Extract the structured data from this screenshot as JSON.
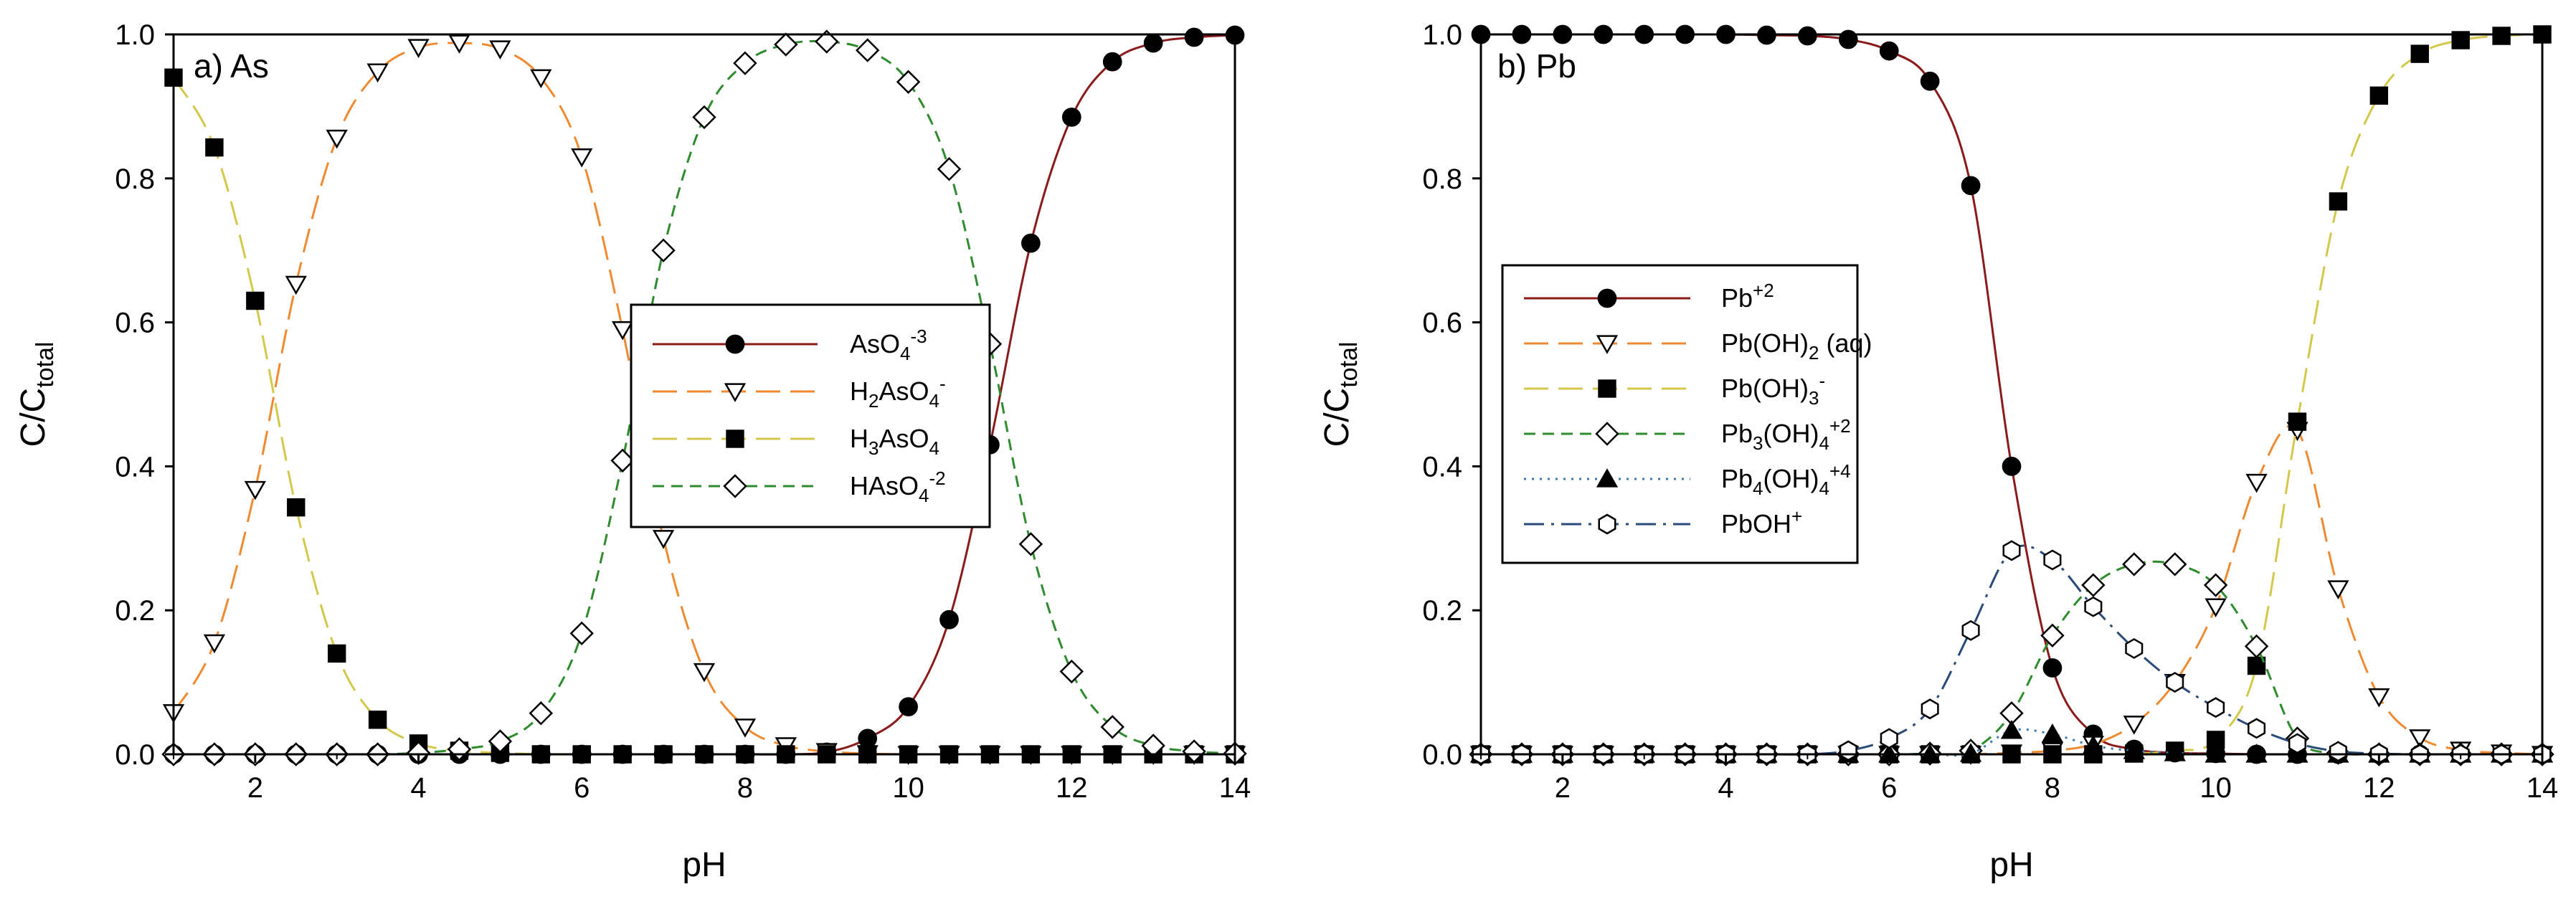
{
  "colors": {
    "asO4": "#8b1a1a",
    "h2asO4": "#f08a30",
    "h3asO4": "#d4c84a",
    "hasO4": "#2e8b2e",
    "pb2": "#8b1a1a",
    "pboh2": "#f08a30",
    "pboh3": "#d4c84a",
    "pb3oh4": "#2e8b2e",
    "pb4oh4": "#3a7ab0",
    "pboh": "#2a4a78"
  },
  "chart_data": [
    {
      "type": "line",
      "title": "a) As",
      "xlabel": "pH",
      "ylabel_main": "C/C",
      "ylabel_sub": "total",
      "xlim": [
        1,
        14
      ],
      "ylim": [
        0,
        1
      ],
      "x_ticks": [
        "2",
        "4",
        "6",
        "8",
        "10",
        "12",
        "14"
      ],
      "y_ticks": [
        "0.0",
        "0.2",
        "0.4",
        "0.6",
        "0.8",
        "1.0"
      ],
      "legend_position": "center",
      "x": [
        1,
        1.5,
        2,
        2.5,
        3,
        3.5,
        4,
        4.5,
        5,
        5.5,
        6,
        6.5,
        7,
        7.5,
        8,
        8.5,
        9,
        9.5,
        10,
        10.5,
        11,
        11.5,
        12,
        12.5,
        13,
        13.5,
        14
      ],
      "series": [
        {
          "key": "asO4",
          "name_base": "AsO",
          "sub": "4",
          "sup": "-3",
          "marker": "circle-filled",
          "dash": "none",
          "color_key": "asO4",
          "values": [
            0,
            0,
            0,
            0,
            0,
            0,
            0,
            0,
            0,
            0,
            0,
            0,
            0,
            0,
            0,
            0,
            0.003,
            0.022,
            0.066,
            0.187,
            0.43,
            0.71,
            0.885,
            0.962,
            0.988,
            0.996,
            0.999
          ]
        },
        {
          "key": "h2asO4",
          "name_base": "H",
          "sub_pre": "2",
          "name_mid": "AsO",
          "sub": "4",
          "sup": "-",
          "marker": "triangle-down-open",
          "dash": "long",
          "color_key": "h2asO4",
          "values": [
            0.058,
            0.155,
            0.368,
            0.653,
            0.856,
            0.948,
            0.982,
            0.988,
            0.98,
            0.94,
            0.83,
            0.59,
            0.3,
            0.115,
            0.038,
            0.012,
            0.004,
            0.001,
            0,
            0,
            0,
            0,
            0,
            0,
            0,
            0,
            0
          ]
        },
        {
          "key": "h3asO4",
          "name_base": "H",
          "sub_pre": "3",
          "name_mid": "AsO",
          "sub": "4",
          "sup": "",
          "marker": "square-filled",
          "dash": "long",
          "color_key": "h3asO4",
          "values": [
            0.94,
            0.843,
            0.63,
            0.343,
            0.14,
            0.048,
            0.015,
            0.005,
            0.002,
            0,
            0,
            0,
            0,
            0,
            0,
            0,
            0,
            0,
            0,
            0,
            0,
            0,
            0,
            0,
            0,
            0,
            0
          ]
        },
        {
          "key": "hasO4",
          "name_base": "HAsO",
          "sub": "4",
          "sup": "-2",
          "marker": "diamond-open",
          "dash": "short",
          "color_key": "hasO4",
          "values": [
            0,
            0,
            0,
            0,
            0,
            0,
            0.002,
            0.007,
            0.018,
            0.057,
            0.168,
            0.408,
            0.7,
            0.885,
            0.96,
            0.986,
            0.99,
            0.978,
            0.934,
            0.813,
            0.57,
            0.292,
            0.115,
            0.038,
            0.012,
            0.004,
            0.001
          ]
        }
      ]
    },
    {
      "type": "line",
      "title": "b) Pb",
      "xlabel": "pH",
      "ylabel_main": "C/C",
      "ylabel_sub": "total",
      "xlim": [
        1,
        14
      ],
      "ylim": [
        0,
        1
      ],
      "x_ticks": [
        "2",
        "4",
        "6",
        "8",
        "10",
        "12",
        "14"
      ],
      "y_ticks": [
        "0.0",
        "0.2",
        "0.4",
        "0.6",
        "0.8",
        "1.0"
      ],
      "legend_position": "center-left",
      "x": [
        1,
        1.5,
        2,
        2.5,
        3,
        3.5,
        4,
        4.5,
        5,
        5.5,
        6,
        6.5,
        7,
        7.5,
        8,
        8.5,
        9,
        9.5,
        10,
        10.5,
        11,
        11.5,
        12,
        12.5,
        13,
        13.5,
        14
      ],
      "series": [
        {
          "key": "pb2",
          "name_base": "Pb",
          "sup": "+2",
          "marker": "circle-filled",
          "dash": "none",
          "color_key": "pb2",
          "values": [
            1,
            1,
            1,
            1,
            1,
            1,
            1,
            0.999,
            0.998,
            0.993,
            0.977,
            0.935,
            0.79,
            0.4,
            0.12,
            0.028,
            0.007,
            0.002,
            0.001,
            0,
            0,
            0,
            0,
            0,
            0,
            0,
            0
          ]
        },
        {
          "key": "pboh2",
          "name_base": "Pb(OH)",
          "sub": "2",
          "name_post": " (aq)",
          "marker": "triangle-down-open",
          "dash": "long",
          "color_key": "pboh2",
          "values": [
            0,
            0,
            0,
            0,
            0,
            0,
            0,
            0,
            0,
            0,
            0,
            0,
            0,
            0.002,
            0.005,
            0.014,
            0.042,
            0.1,
            0.205,
            0.378,
            0.45,
            0.23,
            0.08,
            0.023,
            0.006,
            0.002,
            0
          ]
        },
        {
          "key": "pboh3",
          "name_base": "Pb(OH)",
          "sub": "3",
          "sup": "-",
          "marker": "square-filled",
          "dash": "long",
          "color_key": "pboh3",
          "values": [
            0,
            0,
            0,
            0,
            0,
            0,
            0,
            0,
            0,
            0,
            0,
            0,
            0,
            0,
            0,
            0,
            0.001,
            0.005,
            0.02,
            0.123,
            0.462,
            0.768,
            0.915,
            0.973,
            0.992,
            0.998,
            1
          ]
        },
        {
          "key": "pb3oh4",
          "name_base": "Pb",
          "sub_pre": "3",
          "name_mid": "(OH)",
          "sub": "4",
          "sup": "+2",
          "marker": "diamond-open",
          "dash": "short",
          "color_key": "pb3oh4",
          "values": [
            0,
            0,
            0,
            0,
            0,
            0,
            0,
            0,
            0,
            0,
            0,
            0.001,
            0.005,
            0.057,
            0.165,
            0.235,
            0.264,
            0.264,
            0.235,
            0.15,
            0.022,
            0.002,
            0,
            0,
            0,
            0,
            0
          ]
        },
        {
          "key": "pb4oh4",
          "name_base": "Pb",
          "sub_pre": "4",
          "name_mid": "(OH)",
          "sub": "4",
          "sup": "+4",
          "marker": "triangle-up-filled",
          "dash": "dot",
          "color_key": "pb4oh4",
          "values": [
            0,
            0,
            0,
            0,
            0,
            0,
            0,
            0,
            0,
            0,
            0,
            0,
            0.001,
            0.033,
            0.028,
            0.012,
            0.005,
            0.002,
            0,
            0,
            0,
            0,
            0,
            0,
            0,
            0,
            0
          ]
        },
        {
          "key": "pboh",
          "name_base": "PbOH",
          "sup": "+",
          "marker": "hexagon-open",
          "dash": "dashdot",
          "color_key": "pboh",
          "values": [
            0,
            0,
            0,
            0,
            0,
            0,
            0,
            0,
            0,
            0.005,
            0.022,
            0.063,
            0.172,
            0.283,
            0.27,
            0.205,
            0.147,
            0.1,
            0.065,
            0.036,
            0.015,
            0.004,
            0.001,
            0,
            0,
            0,
            0
          ]
        }
      ]
    }
  ]
}
